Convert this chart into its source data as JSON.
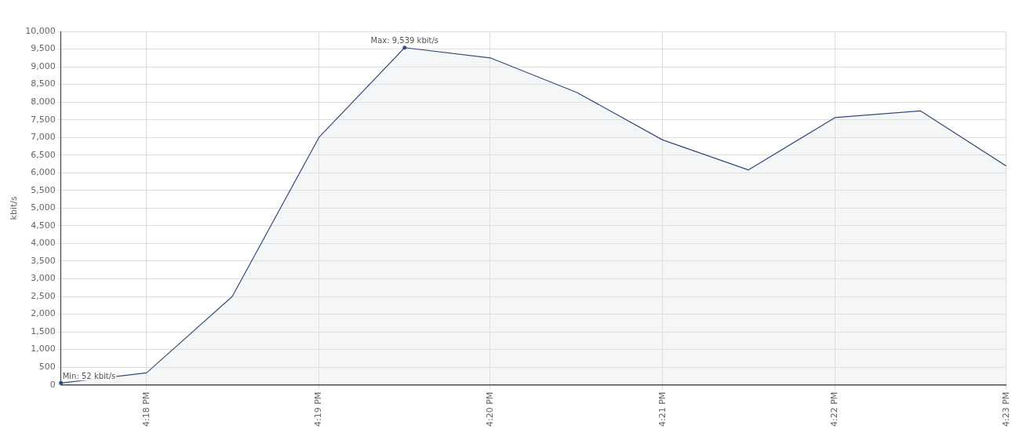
{
  "chart_data": {
    "type": "area",
    "ylabel": "kbit/s",
    "x": [
      16.2917,
      16.3,
      16.3083,
      16.3167,
      16.325,
      16.3333,
      16.3417,
      16.35,
      16.3583,
      16.3667,
      16.375,
      16.3833
    ],
    "series": [
      {
        "color": "#334a7a",
        "values": [
          52,
          340,
          2500,
          7000,
          9539,
          9250,
          8270,
          6930,
          6080,
          7560,
          7750,
          6190
        ]
      }
    ],
    "xlim": [
      16.2917,
      16.3833
    ],
    "xticks": [
      {
        "value": 16.3,
        "label": "4:18 PM"
      },
      {
        "value": 16.3167,
        "label": "4:19 PM"
      },
      {
        "value": 16.3333,
        "label": "4:20 PM"
      },
      {
        "value": 16.35,
        "label": "4:21 PM"
      },
      {
        "value": 16.3667,
        "label": "4:22 PM"
      },
      {
        "value": 16.3833,
        "label": "4:23 PM"
      }
    ],
    "ylim": [
      0,
      10000
    ],
    "yticks": [
      0,
      500,
      {
        "value": 1000,
        "label": "1,000"
      },
      {
        "value": 1500,
        "label": "1,500"
      },
      {
        "value": 2000,
        "label": "2,000"
      },
      {
        "value": 2500,
        "label": "2,500"
      },
      {
        "value": 3000,
        "label": "3,000"
      },
      {
        "value": 3500,
        "label": "3,500"
      },
      {
        "value": 4000,
        "label": "4,000"
      },
      {
        "value": 4500,
        "label": "4,500"
      },
      {
        "value": 5000,
        "label": "5,000"
      },
      {
        "value": 5500,
        "label": "5,500"
      },
      {
        "value": 6000,
        "label": "6,000"
      },
      {
        "value": 6500,
        "label": "6,500"
      },
      {
        "value": 7000,
        "label": "7,000"
      },
      {
        "value": 7500,
        "label": "7,500"
      },
      {
        "value": 8000,
        "label": "8,000"
      },
      {
        "value": 8500,
        "label": "8,500"
      },
      {
        "value": 9000,
        "label": "9,000"
      },
      {
        "value": 9500,
        "label": "9,500"
      },
      {
        "value": 10000,
        "label": "10,000"
      }
    ],
    "grid": true,
    "legend": false,
    "marker": "none",
    "line_style": "solid",
    "annotations": [
      {
        "text": "Max: 9,539 kbit/s",
        "x": 16.325,
        "y": 9539
      },
      {
        "text": "Min: 52 kbit/s",
        "x": 16.2917,
        "y": 52
      }
    ]
  }
}
